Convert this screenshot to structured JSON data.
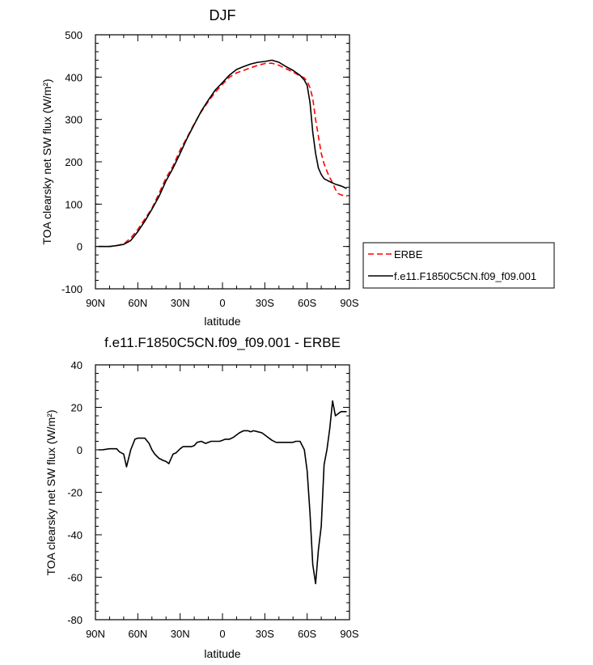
{
  "chart_data": [
    {
      "type": "line",
      "title": "DJF",
      "xlabel": "latitude",
      "ylabel": "TOA clearsky net SW flux (W/m²)",
      "xlim": [
        -90,
        90
      ],
      "ylim": [
        -100,
        500
      ],
      "x_ticks": [
        -90,
        -60,
        -30,
        0,
        30,
        60,
        90
      ],
      "x_tick_labels": [
        "90N",
        "60N",
        "30N",
        "0",
        "30S",
        "60S",
        "90S"
      ],
      "y_ticks": [
        -100,
        0,
        100,
        200,
        300,
        400,
        500
      ],
      "y_tick_labels": [
        "-100",
        "0",
        "100",
        "200",
        "300",
        "400",
        "500"
      ],
      "grid": false,
      "legend_position": "right",
      "series": [
        {
          "name": "ERBE",
          "color": "#ff0000",
          "dash": "dashed",
          "x": [
            -88,
            -85,
            -80,
            -75,
            -70,
            -65,
            -60,
            -55,
            -50,
            -45,
            -40,
            -35,
            -30,
            -25,
            -20,
            -15,
            -10,
            -5,
            0,
            5,
            10,
            15,
            20,
            25,
            30,
            35,
            40,
            45,
            50,
            55,
            58,
            60,
            62,
            64,
            66,
            68,
            70,
            72,
            75,
            78,
            80,
            82,
            84,
            86,
            88
          ],
          "values": [
            0,
            0,
            0,
            2,
            6,
            20,
            40,
            65,
            90,
            125,
            162,
            190,
            228,
            258,
            290,
            318,
            343,
            365,
            383,
            400,
            410,
            416,
            422,
            428,
            432,
            433,
            428,
            420,
            412,
            403,
            398,
            390,
            375,
            350,
            300,
            260,
            220,
            195,
            170,
            150,
            135,
            125,
            122,
            120,
            118
          ]
        },
        {
          "name": "f.e11.F1850C5CN.f09_f09.001",
          "color": "#000000",
          "dash": "solid",
          "x": [
            -88,
            -85,
            -80,
            -75,
            -70,
            -65,
            -60,
            -55,
            -50,
            -45,
            -40,
            -35,
            -30,
            -25,
            -20,
            -15,
            -10,
            -5,
            0,
            5,
            10,
            15,
            20,
            25,
            30,
            35,
            40,
            45,
            50,
            55,
            58,
            60,
            62,
            64,
            66,
            68,
            70,
            72,
            75,
            78,
            80,
            82,
            84,
            86,
            88
          ],
          "values": [
            0,
            0,
            0,
            2,
            5,
            14,
            35,
            60,
            88,
            118,
            155,
            185,
            220,
            256,
            288,
            320,
            346,
            370,
            387,
            405,
            418,
            425,
            431,
            435,
            437,
            440,
            435,
            425,
            416,
            404,
            393,
            380,
            340,
            270,
            220,
            185,
            170,
            160,
            155,
            150,
            147,
            145,
            143,
            140,
            137
          ]
        }
      ]
    },
    {
      "type": "line",
      "title": "f.e11.F1850C5CN.f09_f09.001 - ERBE",
      "xlabel": "latitude",
      "ylabel": "TOA clearsky net SW flux (W/m²)",
      "xlim": [
        -90,
        90
      ],
      "ylim": [
        -80,
        40
      ],
      "x_ticks": [
        -90,
        -60,
        -30,
        0,
        30,
        60,
        90
      ],
      "x_tick_labels": [
        "90N",
        "60N",
        "30N",
        "0",
        "30S",
        "60S",
        "90S"
      ],
      "y_ticks": [
        -80,
        -60,
        -40,
        -20,
        0,
        20,
        40
      ],
      "y_tick_labels": [
        "-80",
        "-60",
        "-40",
        "-20",
        "0",
        "20",
        "40"
      ],
      "grid": false,
      "series": [
        {
          "color": "#000000",
          "dash": "solid",
          "x": [
            -88,
            -85,
            -80,
            -75,
            -73,
            -70,
            -68,
            -65,
            -62,
            -60,
            -58,
            -55,
            -52,
            -50,
            -48,
            -45,
            -42,
            -40,
            -38,
            -35,
            -33,
            -30,
            -28,
            -25,
            -22,
            -20,
            -18,
            -15,
            -12,
            -10,
            -8,
            -5,
            -2,
            0,
            2,
            5,
            8,
            10,
            12,
            15,
            18,
            20,
            22,
            25,
            28,
            30,
            32,
            35,
            38,
            40,
            42,
            45,
            48,
            50,
            52,
            55,
            58,
            60,
            62,
            64,
            66,
            68,
            70,
            72,
            74,
            76,
            78,
            80,
            82,
            84,
            86,
            88
          ],
          "values": [
            0,
            0,
            0.5,
            0.5,
            -1,
            -2,
            -8,
            0,
            5,
            5.5,
            5.5,
            5.5,
            3,
            0,
            -2,
            -4,
            -5,
            -5.5,
            -6.5,
            -2,
            -1.5,
            0.5,
            1.5,
            1.5,
            1.5,
            2,
            3.5,
            4,
            3,
            3.5,
            4,
            4,
            4,
            4.5,
            5,
            5,
            6,
            7,
            8,
            9,
            9,
            8.5,
            9,
            8.5,
            8,
            7,
            6,
            4.5,
            3.5,
            3.5,
            3.5,
            3.5,
            3.5,
            3.5,
            4,
            4,
            0,
            -10,
            -30,
            -54,
            -63,
            -47,
            -36,
            -7,
            0,
            10,
            23,
            16,
            17,
            18,
            18,
            18
          ]
        }
      ]
    }
  ]
}
